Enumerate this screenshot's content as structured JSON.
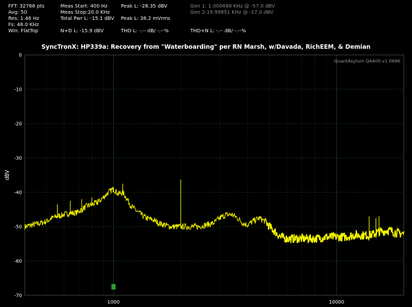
{
  "stats": {
    "fft": "FFT: 32768 pts",
    "avg": "Avg: 50",
    "res": "Res: 1.46 Hz",
    "fs": "Fs: 48.0 KHz",
    "win": "Win: FlatTop",
    "meas_start": "Meas Start: 400 Hz",
    "meas_stop": "Meas Stop:20.0 KHz",
    "total_pwr": "Total Pwr L: -15.1 dBV",
    "nd": "N+D L: -15.9 dBV",
    "peak_dbv": "Peak L: -28.35 dBV",
    "peak_mvrms": "Peak L: 38.2 mVrms",
    "thd": "THD L: -.-- dB/ -.--%",
    "gen1": "Gen 1: 1.000488 KHz @ -57.0  dBV",
    "gen2": "Gen 2:19.99951 KHz @ -17.0  dBV",
    "thdn": "THD+N L: -.-- dB/ -.--%"
  },
  "chart_data": {
    "type": "line",
    "title": "SyncTronX: HP339a: Recovery from \"Waterboarding\" per RN Marsh, w/Davada, RichEEM, & Demian",
    "watermark": "QuantAsylum QA400 v1.0696",
    "ylabel": "dBV",
    "xlabel": "",
    "x_scale": "log",
    "xlim": [
      400,
      20000
    ],
    "ylim": [
      -70,
      0
    ],
    "y_ticks": [
      0,
      -10,
      -20,
      -30,
      -40,
      -50,
      -60,
      -70
    ],
    "y_tick_labels": [
      "0",
      "-10",
      "-20",
      "-30",
      "-40",
      "-50",
      "-60",
      "-70"
    ],
    "x_ticks": [
      1000,
      10000
    ],
    "x_tick_labels": [
      "1000",
      "10000"
    ],
    "grid": true,
    "trace_color": "#ffff00",
    "grid_color": "#1f4a1f",
    "marker_color": "#2fa02f",
    "marker": {
      "x": 1000,
      "y": -67.5
    },
    "series": [
      {
        "x": [
          400,
          430,
          470,
          500,
          530,
          560,
          600,
          640,
          680,
          720,
          760,
          800,
          850,
          900,
          950,
          1000,
          1050,
          1100,
          1150,
          1200,
          1300,
          1400,
          1500,
          1600,
          1700,
          1800,
          2000,
          2200,
          2400,
          2600,
          2800,
          3000,
          3200,
          3400,
          3600,
          3800,
          4000,
          4200,
          4500,
          4800,
          5000,
          5300,
          5600,
          6000,
          6500,
          7000,
          8000,
          9000,
          10000,
          11000,
          12000,
          13000,
          14000,
          15000,
          15500,
          16000,
          17000,
          18000,
          19000,
          20000
        ],
        "y": [
          -50,
          -49.5,
          -49,
          -48.5,
          -47.5,
          -47,
          -46.5,
          -46,
          -46,
          -45,
          -44,
          -43.5,
          -43,
          -41.5,
          -40,
          -39,
          -40.5,
          -40,
          -42,
          -44,
          -46,
          -47.5,
          -48,
          -49,
          -49.5,
          -50,
          -50,
          -50,
          -50,
          -49.5,
          -49,
          -47.5,
          -46.5,
          -46.5,
          -47.5,
          -49,
          -49.5,
          -48.5,
          -47.5,
          -48.5,
          -50,
          -51.5,
          -53,
          -53.5,
          -53.5,
          -53.5,
          -53.5,
          -53,
          -53,
          -53,
          -52.5,
          -52.5,
          -52.5,
          -52,
          -51.5,
          -51.5,
          -51,
          -51.5,
          -52,
          -52
        ]
      }
    ],
    "spikes": [
      {
        "x": 560,
        "y": -43.5
      },
      {
        "x": 640,
        "y": -42.5
      },
      {
        "x": 720,
        "y": -42
      },
      {
        "x": 800,
        "y": -41.5
      },
      {
        "x": 850,
        "y": -42
      },
      {
        "x": 1000,
        "y": -38.5
      },
      {
        "x": 1100,
        "y": -37.5
      },
      {
        "x": 2000,
        "y": -36.3
      },
      {
        "x": 14000,
        "y": -47
      },
      {
        "x": 15000,
        "y": -47.5
      },
      {
        "x": 15500,
        "y": -47
      }
    ]
  }
}
